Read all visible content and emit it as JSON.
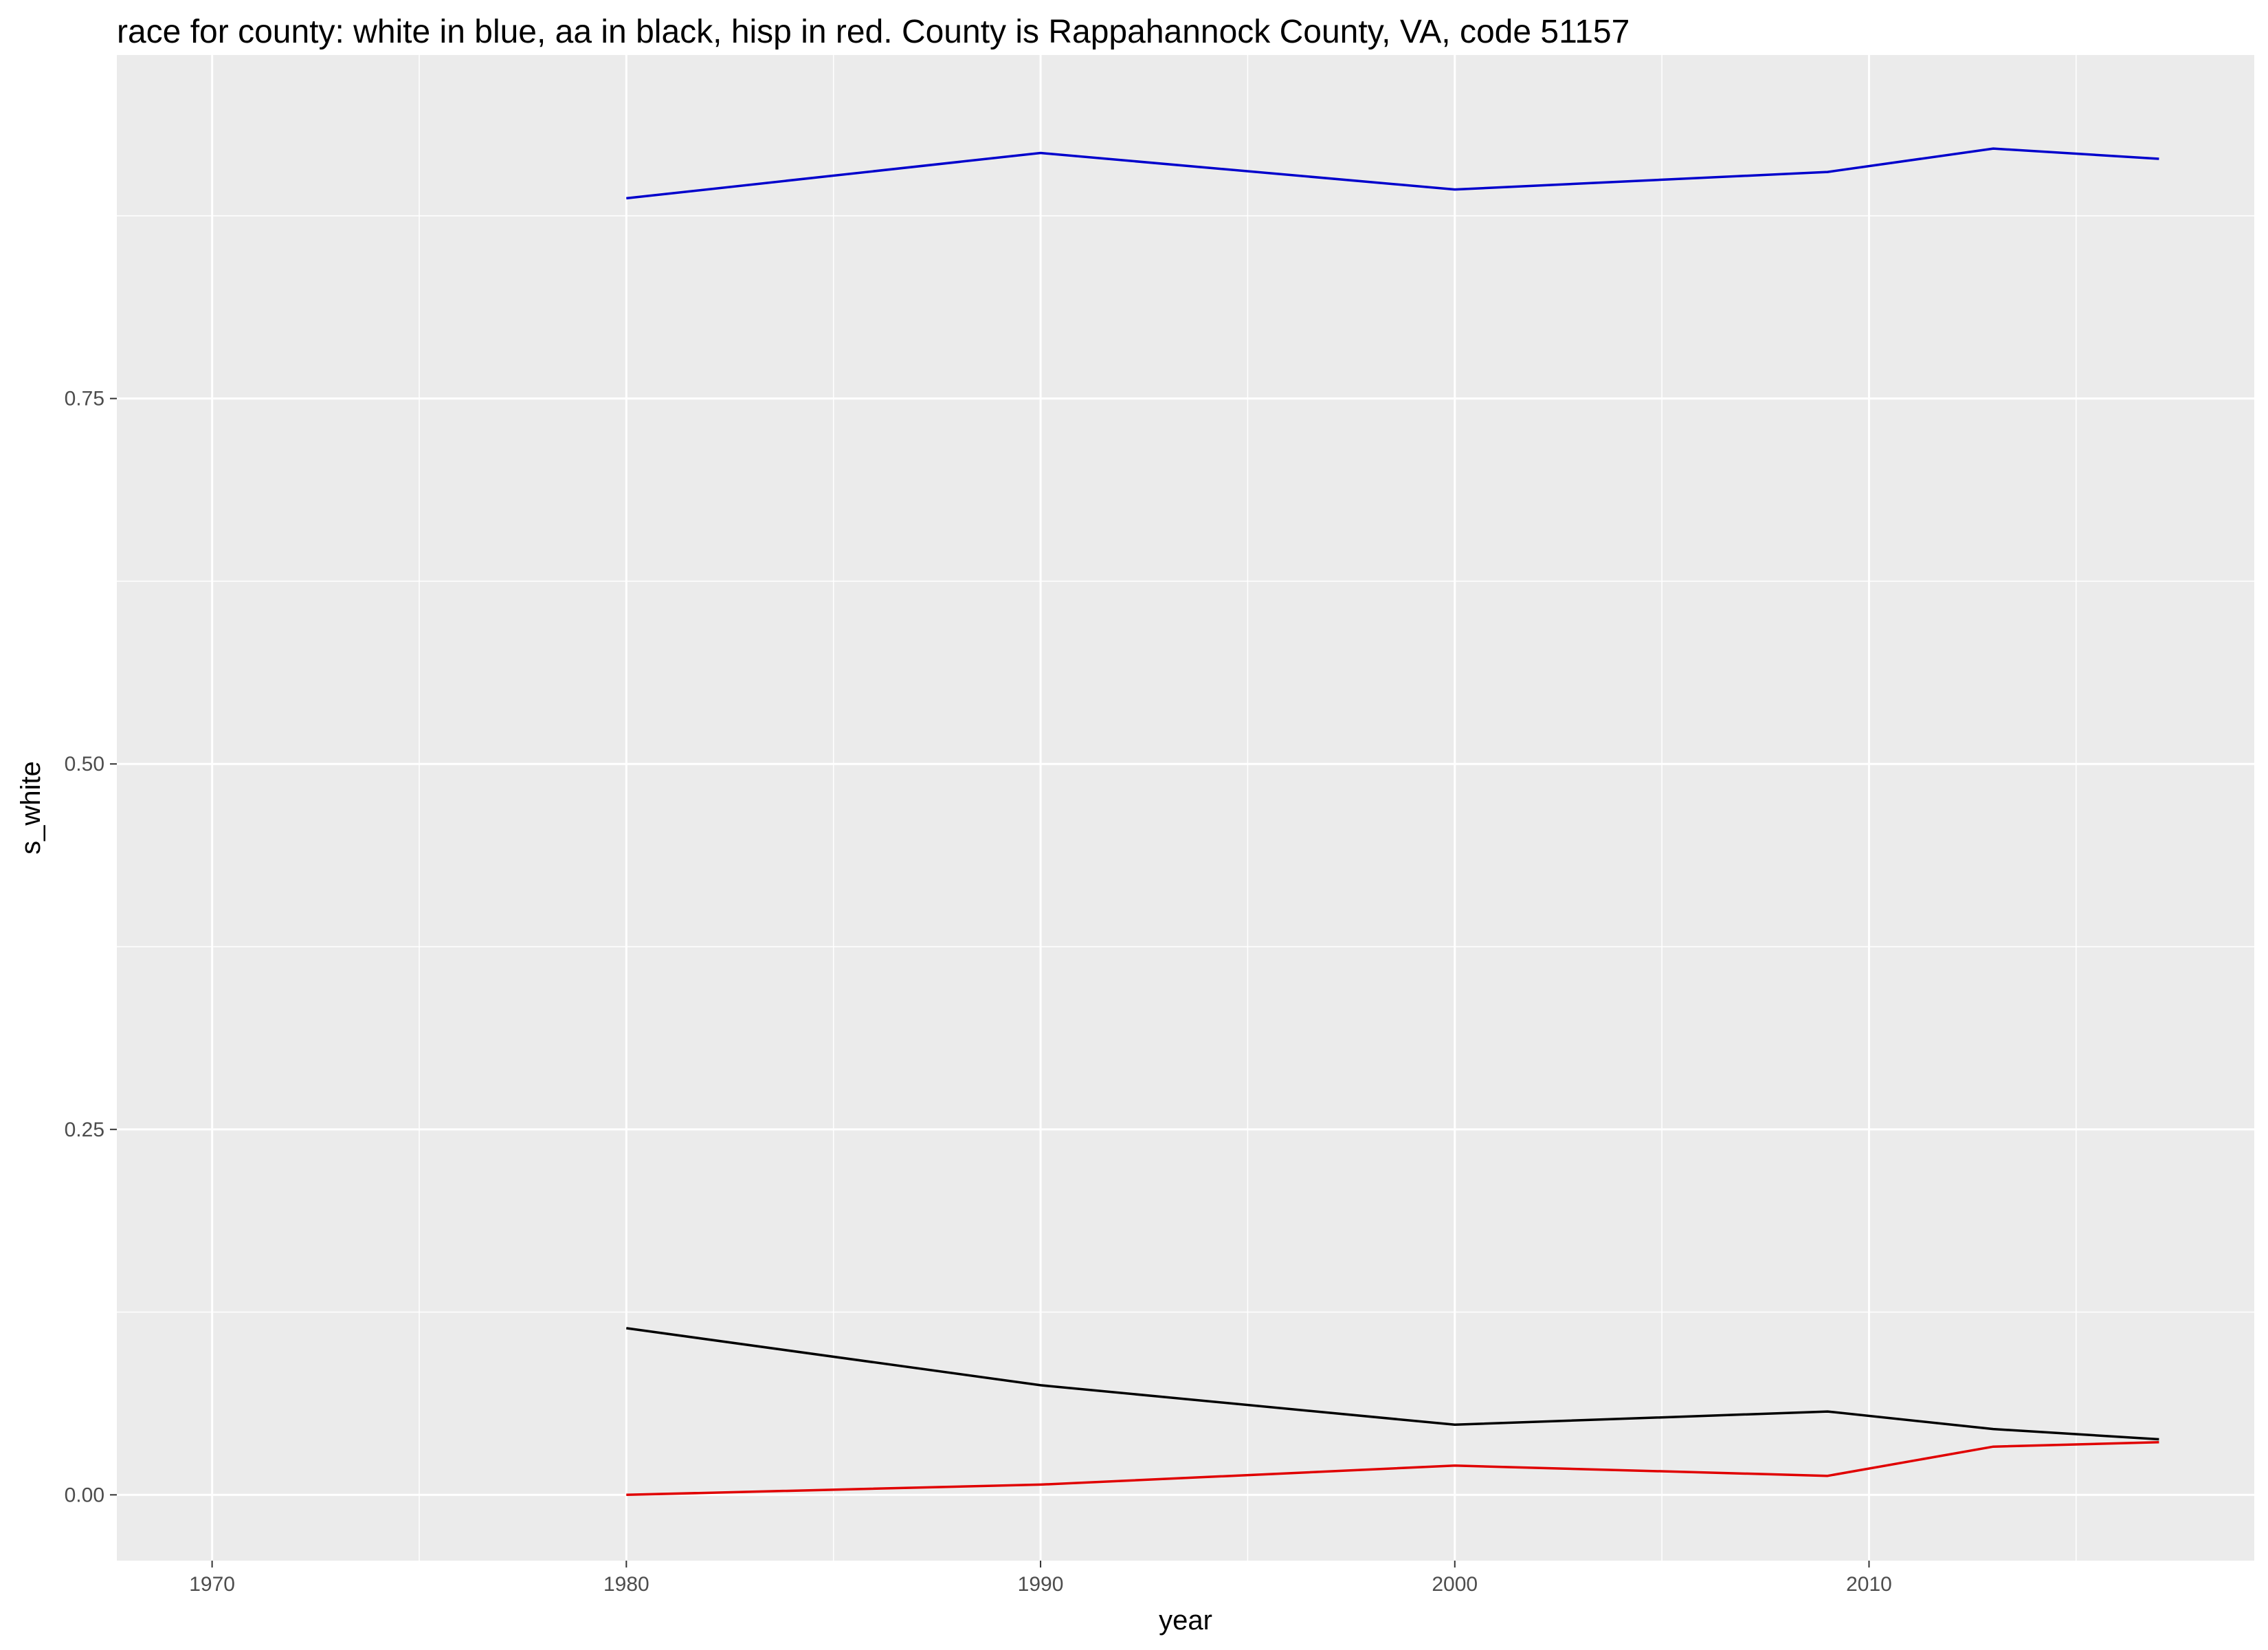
{
  "chart_data": {
    "type": "line",
    "title": "race for county: white in blue, aa in black, hisp in red. County is Rappahannock County, VA, code 51157",
    "xlabel": "year",
    "ylabel": "s_white",
    "xlim": [
      1967.7,
      2019.3
    ],
    "ylim": [
      -0.045,
      0.985
    ],
    "x_ticks": [
      1970,
      1980,
      1990,
      2000,
      2010
    ],
    "x_tick_labels": [
      "1970",
      "1980",
      "1990",
      "2000",
      "2010"
    ],
    "y_ticks": [
      0,
      0.25,
      0.5,
      0.75
    ],
    "y_tick_labels": [
      "0.00",
      "0.25",
      "0.50",
      "0.75"
    ],
    "grid": true,
    "background": "#ebebeb",
    "series": [
      {
        "color": "#0000cc",
        "points": [
          [
            1980,
            0.887
          ],
          [
            1990,
            0.918
          ],
          [
            2000,
            0.893
          ],
          [
            2009,
            0.905
          ],
          [
            2013,
            0.921
          ],
          [
            2017,
            0.914
          ]
        ]
      },
      {
        "color": "#000000",
        "points": [
          [
            1980,
            0.114
          ],
          [
            1990,
            0.075
          ],
          [
            2000,
            0.048
          ],
          [
            2009,
            0.057
          ],
          [
            2013,
            0.045
          ],
          [
            2017,
            0.038
          ]
        ]
      },
      {
        "color": "#e00000",
        "points": [
          [
            1980,
            0.0
          ],
          [
            1990,
            0.007
          ],
          [
            2000,
            0.02
          ],
          [
            2009,
            0.013
          ],
          [
            2013,
            0.033
          ],
          [
            2017,
            0.036
          ]
        ]
      }
    ]
  }
}
